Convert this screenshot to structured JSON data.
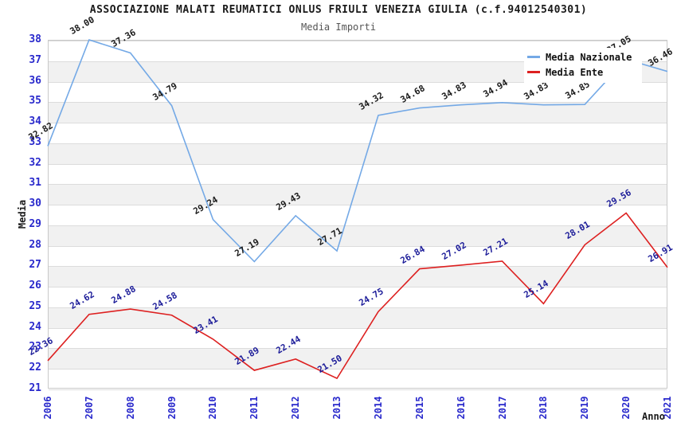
{
  "title": "ASSOCIAZIONE MALATI REUMATICI ONLUS FRIULI VENEZIA GIULIA (c.f.94012540301)",
  "subtitle": "Media Importi",
  "axes": {
    "x_title": "Anno",
    "y_title": "Media",
    "y_ticks": [
      21,
      22,
      23,
      24,
      25,
      26,
      27,
      28,
      29,
      30,
      31,
      32,
      33,
      34,
      35,
      36,
      37,
      38
    ]
  },
  "legend": {
    "items": [
      {
        "label": "Media Nazionale",
        "color": "#74a9e6"
      },
      {
        "label": "Media Ente",
        "color": "#dd2020"
      }
    ]
  },
  "colors": {
    "nazionale_line": "#74a9e6",
    "ente_line": "#dd2020",
    "tick_label_blue": "#2929cc",
    "band_gray": "#f1f1f1",
    "gridline_gray": "#dcdcdc"
  },
  "chart_data": {
    "type": "line",
    "title": "ASSOCIAZIONE MALATI REUMATICI ONLUS FRIULI VENEZIA GIULIA (c.f.94012540301)",
    "subtitle": "Media Importi",
    "xlabel": "Anno",
    "ylabel": "Media",
    "x": [
      2006,
      2007,
      2008,
      2009,
      2010,
      2011,
      2012,
      2013,
      2014,
      2015,
      2016,
      2017,
      2018,
      2019,
      2020,
      2021
    ],
    "series": [
      {
        "name": "Media Nazionale",
        "color": "#74a9e6",
        "values": [
          32.82,
          38.0,
          37.36,
          34.79,
          29.24,
          27.19,
          29.43,
          27.71,
          34.32,
          34.68,
          34.83,
          34.94,
          34.83,
          34.85,
          37.05,
          36.46
        ]
      },
      {
        "name": "Media Ente",
        "color": "#dd2020",
        "values": [
          22.36,
          24.62,
          24.88,
          24.58,
          23.41,
          21.89,
          22.44,
          21.5,
          24.75,
          26.84,
          27.02,
          27.21,
          25.14,
          28.01,
          29.56,
          26.91
        ]
      }
    ],
    "ylim": [
      21,
      38
    ],
    "point_labels": true,
    "grid": "horizontal gridlines at each integer with alternating gray bands",
    "legend_position": "top-right"
  }
}
